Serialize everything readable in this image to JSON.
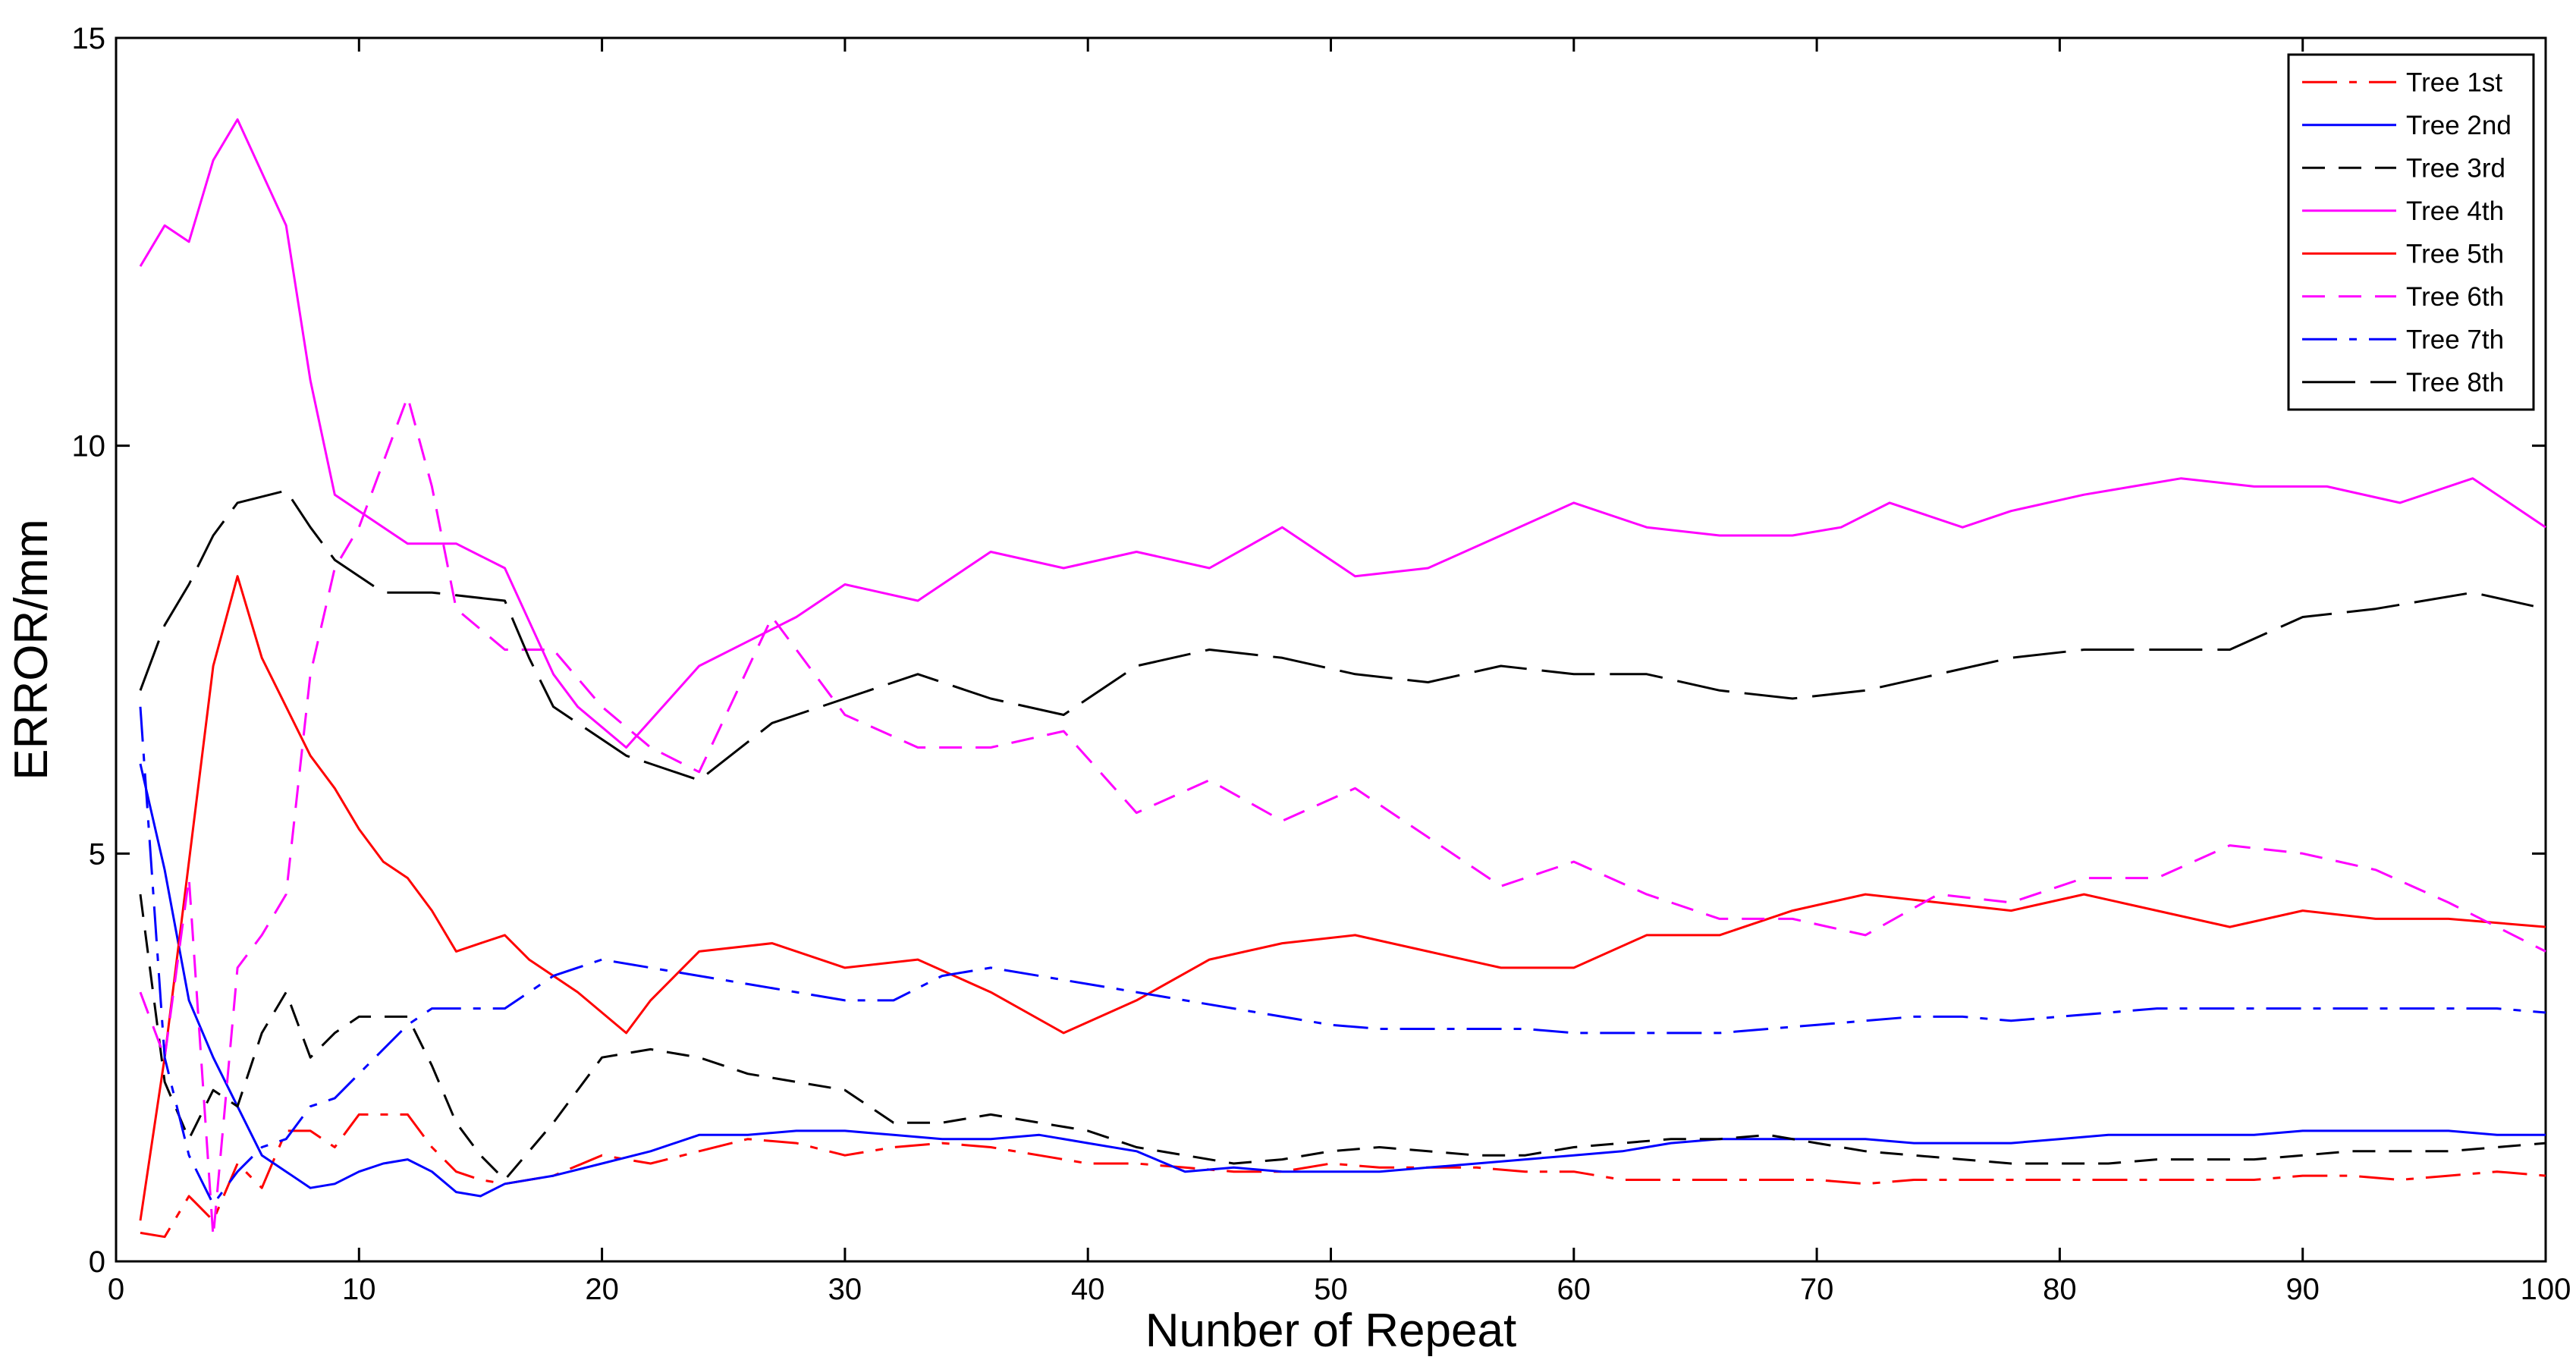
{
  "chart_data": {
    "type": "line",
    "title": "",
    "xlabel": "Nunber of Repeat",
    "ylabel": "ERROR/mm",
    "xlim": [
      0,
      100
    ],
    "ylim": [
      0,
      15
    ],
    "xticks": [
      0,
      10,
      20,
      30,
      40,
      50,
      60,
      70,
      80,
      90,
      100
    ],
    "yticks": [
      0,
      5,
      10,
      15
    ],
    "grid": false,
    "legend_position": "top-right",
    "series": [
      {
        "name": "Tree 1st",
        "color": "#ff0000",
        "dash": "dashdot",
        "x": [
          1,
          2,
          3,
          4,
          5,
          6,
          7,
          8,
          9,
          10,
          11,
          12,
          13,
          14,
          15,
          16,
          18,
          20,
          22,
          24,
          26,
          28,
          30,
          32,
          34,
          36,
          38,
          40,
          42,
          44,
          46,
          48,
          50,
          52,
          54,
          56,
          58,
          60,
          62,
          64,
          66,
          68,
          70,
          72,
          74,
          76,
          78,
          80,
          82,
          84,
          86,
          88,
          90,
          92,
          94,
          96,
          98,
          100
        ],
        "y": [
          0.35,
          0.3,
          0.8,
          0.5,
          1.2,
          0.9,
          1.6,
          1.6,
          1.4,
          1.8,
          1.8,
          1.8,
          1.4,
          1.1,
          1.0,
          0.95,
          1.05,
          1.3,
          1.2,
          1.35,
          1.5,
          1.45,
          1.3,
          1.4,
          1.45,
          1.4,
          1.3,
          1.2,
          1.2,
          1.15,
          1.1,
          1.1,
          1.2,
          1.15,
          1.15,
          1.15,
          1.1,
          1.1,
          1.0,
          1.0,
          1.0,
          1.0,
          1.0,
          0.95,
          1.0,
          1.0,
          1.0,
          1.0,
          1.0,
          1.0,
          1.0,
          1.0,
          1.05,
          1.05,
          1.0,
          1.05,
          1.1,
          1.05
        ]
      },
      {
        "name": "Tree 2nd",
        "color": "#0000ff",
        "dash": "solid",
        "x": [
          1,
          2,
          3,
          4,
          5,
          6,
          7,
          8,
          9,
          10,
          11,
          12,
          13,
          14,
          15,
          16,
          18,
          20,
          22,
          24,
          26,
          28,
          30,
          32,
          34,
          36,
          38,
          40,
          42,
          44,
          46,
          48,
          50,
          52,
          54,
          56,
          58,
          60,
          62,
          64,
          66,
          68,
          70,
          72,
          74,
          76,
          78,
          80,
          82,
          84,
          86,
          88,
          90,
          92,
          94,
          96,
          98,
          100
        ],
        "y": [
          6.1,
          4.8,
          3.2,
          2.5,
          1.9,
          1.3,
          1.1,
          0.9,
          0.95,
          1.1,
          1.2,
          1.25,
          1.1,
          0.85,
          0.8,
          0.95,
          1.05,
          1.2,
          1.35,
          1.55,
          1.55,
          1.6,
          1.6,
          1.55,
          1.5,
          1.5,
          1.55,
          1.45,
          1.35,
          1.1,
          1.15,
          1.1,
          1.1,
          1.1,
          1.15,
          1.2,
          1.25,
          1.3,
          1.35,
          1.45,
          1.5,
          1.5,
          1.5,
          1.5,
          1.45,
          1.45,
          1.45,
          1.5,
          1.55,
          1.55,
          1.55,
          1.55,
          1.6,
          1.6,
          1.6,
          1.6,
          1.55,
          1.55
        ]
      },
      {
        "name": "Tree 3rd",
        "color": "#000000",
        "dash": "dashed",
        "x": [
          1,
          2,
          3,
          4,
          5,
          6,
          7,
          8,
          9,
          10,
          11,
          12,
          13,
          14,
          15,
          16,
          18,
          20,
          22,
          24,
          26,
          28,
          30,
          32,
          34,
          36,
          38,
          40,
          42,
          44,
          46,
          48,
          50,
          52,
          54,
          56,
          58,
          60,
          62,
          64,
          66,
          68,
          70,
          72,
          74,
          76,
          78,
          80,
          82,
          84,
          86,
          88,
          90,
          92,
          94,
          96,
          98,
          100
        ],
        "y": [
          4.5,
          2.2,
          1.5,
          2.1,
          1.9,
          2.8,
          3.3,
          2.5,
          2.8,
          3.0,
          3.0,
          3.0,
          2.4,
          1.7,
          1.3,
          1.0,
          1.7,
          2.5,
          2.6,
          2.5,
          2.3,
          2.2,
          2.1,
          1.7,
          1.7,
          1.8,
          1.7,
          1.6,
          1.4,
          1.3,
          1.2,
          1.25,
          1.35,
          1.4,
          1.35,
          1.3,
          1.3,
          1.4,
          1.45,
          1.5,
          1.5,
          1.55,
          1.45,
          1.35,
          1.3,
          1.25,
          1.2,
          1.2,
          1.2,
          1.25,
          1.25,
          1.25,
          1.3,
          1.35,
          1.35,
          1.35,
          1.4,
          1.45
        ]
      },
      {
        "name": "Tree 4th",
        "color": "#ff00ff",
        "dash": "solid",
        "x": [
          1,
          2,
          3,
          4,
          5,
          7,
          8,
          9,
          11,
          12,
          14,
          16,
          18,
          19,
          21,
          24,
          26,
          28,
          30,
          33,
          36,
          39,
          42,
          45,
          48,
          51,
          54,
          57,
          60,
          63,
          66,
          69,
          71,
          73,
          76,
          78,
          81,
          83,
          85,
          88,
          91,
          94,
          97,
          100
        ],
        "y": [
          12.2,
          12.7,
          12.5,
          13.5,
          14.0,
          12.7,
          10.8,
          9.4,
          9.0,
          8.8,
          8.8,
          8.5,
          7.2,
          6.8,
          6.3,
          7.3,
          7.6,
          7.9,
          8.3,
          8.1,
          8.7,
          8.5,
          8.7,
          8.5,
          9.0,
          8.4,
          8.5,
          8.9,
          9.3,
          9.0,
          8.9,
          8.9,
          9.0,
          9.3,
          9.0,
          9.2,
          9.4,
          9.5,
          9.6,
          9.5,
          9.5,
          9.3,
          9.6,
          9.0
        ]
      },
      {
        "name": "Tree 5th",
        "color": "#ff0000",
        "dash": "solid",
        "x": [
          1,
          2,
          3,
          4,
          5,
          6,
          7,
          8,
          9,
          10,
          11,
          12,
          13,
          14,
          15,
          16,
          17,
          19,
          21,
          22,
          24,
          27,
          30,
          33,
          36,
          39,
          42,
          45,
          48,
          51,
          54,
          57,
          60,
          63,
          66,
          69,
          72,
          75,
          78,
          81,
          84,
          87,
          90,
          93,
          96,
          100
        ],
        "y": [
          0.5,
          2.5,
          4.9,
          7.3,
          8.4,
          7.4,
          6.8,
          6.2,
          5.8,
          5.3,
          4.9,
          4.7,
          4.3,
          3.8,
          3.9,
          4.0,
          3.7,
          3.3,
          2.8,
          3.2,
          3.8,
          3.9,
          3.6,
          3.7,
          3.3,
          2.8,
          3.2,
          3.7,
          3.9,
          4.0,
          3.8,
          3.6,
          3.6,
          4.0,
          4.0,
          4.3,
          4.5,
          4.4,
          4.3,
          4.5,
          4.3,
          4.1,
          4.3,
          4.2,
          4.2,
          4.1
        ]
      },
      {
        "name": "Tree 6th",
        "color": "#ff00ff",
        "dash": "dashed",
        "x": [
          1,
          2,
          3,
          4,
          5,
          6,
          7,
          8,
          9,
          10,
          11,
          12,
          13,
          14,
          16,
          18,
          20,
          22,
          24,
          27,
          30,
          33,
          36,
          39,
          42,
          45,
          48,
          51,
          54,
          57,
          60,
          63,
          66,
          69,
          72,
          75,
          78,
          81,
          84,
          87,
          90,
          93,
          96,
          100
        ],
        "y": [
          3.3,
          2.5,
          4.7,
          0.3,
          3.6,
          4.0,
          4.5,
          7.2,
          8.5,
          9.0,
          9.8,
          10.6,
          9.5,
          8.0,
          7.5,
          7.5,
          6.8,
          6.3,
          6.0,
          7.9,
          6.7,
          6.3,
          6.3,
          6.5,
          5.5,
          5.9,
          5.4,
          5.8,
          5.2,
          4.6,
          4.9,
          4.5,
          4.2,
          4.2,
          4.0,
          4.5,
          4.4,
          4.7,
          4.7,
          5.1,
          5.0,
          4.8,
          4.4,
          3.8
        ]
      },
      {
        "name": "Tree 7th",
        "color": "#0000ff",
        "dash": "dashdot",
        "x": [
          1,
          2,
          3,
          4,
          5,
          6,
          7,
          8,
          9,
          10,
          11,
          12,
          13,
          14,
          15,
          16,
          18,
          20,
          22,
          24,
          26,
          28,
          30,
          32,
          34,
          36,
          38,
          40,
          42,
          44,
          46,
          48,
          50,
          52,
          54,
          56,
          58,
          60,
          62,
          64,
          66,
          68,
          70,
          72,
          74,
          76,
          78,
          80,
          82,
          84,
          86,
          88,
          90,
          92,
          94,
          96,
          98,
          100
        ],
        "y": [
          6.8,
          2.5,
          1.3,
          0.7,
          1.1,
          1.4,
          1.5,
          1.9,
          2.0,
          2.3,
          2.6,
          2.9,
          3.1,
          3.1,
          3.1,
          3.1,
          3.5,
          3.7,
          3.6,
          3.5,
          3.4,
          3.3,
          3.2,
          3.2,
          3.5,
          3.6,
          3.5,
          3.4,
          3.3,
          3.2,
          3.1,
          3.0,
          2.9,
          2.85,
          2.85,
          2.85,
          2.85,
          2.8,
          2.8,
          2.8,
          2.8,
          2.85,
          2.9,
          2.95,
          3.0,
          3.0,
          2.95,
          3.0,
          3.05,
          3.1,
          3.1,
          3.1,
          3.1,
          3.1,
          3.1,
          3.1,
          3.1,
          3.05
        ]
      },
      {
        "name": "Tree 8th",
        "color": "#000000",
        "dash": "longdash",
        "x": [
          1,
          2,
          3,
          4,
          5,
          7,
          8,
          9,
          10,
          11,
          13,
          16,
          17,
          18,
          19,
          20,
          21,
          22,
          24,
          27,
          30,
          33,
          36,
          39,
          42,
          45,
          48,
          51,
          54,
          57,
          60,
          63,
          66,
          69,
          72,
          75,
          78,
          81,
          84,
          87,
          90,
          93,
          97,
          100
        ],
        "y": [
          7.0,
          7.8,
          8.3,
          8.9,
          9.3,
          9.45,
          9.0,
          8.6,
          8.4,
          8.2,
          8.2,
          8.1,
          7.4,
          6.8,
          6.6,
          6.4,
          6.2,
          6.1,
          5.9,
          6.6,
          6.9,
          7.2,
          6.9,
          6.7,
          7.3,
          7.5,
          7.4,
          7.2,
          7.1,
          7.3,
          7.2,
          7.2,
          7.0,
          6.9,
          7.0,
          7.2,
          7.4,
          7.5,
          7.5,
          7.5,
          7.9,
          8.0,
          8.2,
          8.0
        ]
      }
    ]
  }
}
